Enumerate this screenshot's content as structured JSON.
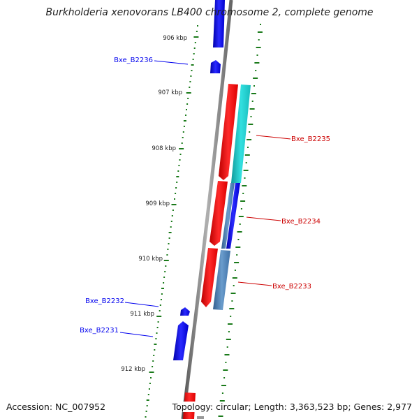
{
  "title": "Burkholderia xenovorans LB400 chromosome 2, complete genome",
  "accession_text": "Accession: NC_007952",
  "topology_text": "Topology: circular; Length: 3,363,523 bp; Genes: 2,977",
  "colors": {
    "backbone": "#888888",
    "tick": "#1a7a1a",
    "label_text": "#222222",
    "forward_gene": "#0000ee",
    "reverse_gene": "#ee0000",
    "feature_cyan": "#19cccc",
    "feature_steel": "#4a7db8"
  },
  "ruler": {
    "labels": [
      "906 kbp",
      "907 kbp",
      "908 kbp",
      "909 kbp",
      "910 kbp",
      "911 kbp",
      "912 kbp"
    ],
    "positions_kbp": [
      906,
      907,
      908,
      909,
      910,
      911,
      912
    ]
  },
  "gene_labels": [
    {
      "id": "Bxe_B2236",
      "text": "Bxe_B2236",
      "color": "#0000ee"
    },
    {
      "id": "Bxe_B2235",
      "text": "Bxe_B2235",
      "color": "#cc0000"
    },
    {
      "id": "Bxe_B2234",
      "text": "Bxe_B2234",
      "color": "#cc0000"
    },
    {
      "id": "Bxe_B2233",
      "text": "Bxe_B2233",
      "color": "#cc0000"
    },
    {
      "id": "Bxe_B2232",
      "text": "Bxe_B2232",
      "color": "#0000ee"
    },
    {
      "id": "Bxe_B2231",
      "text": "Bxe_B2231",
      "color": "#0000ee"
    }
  ]
}
